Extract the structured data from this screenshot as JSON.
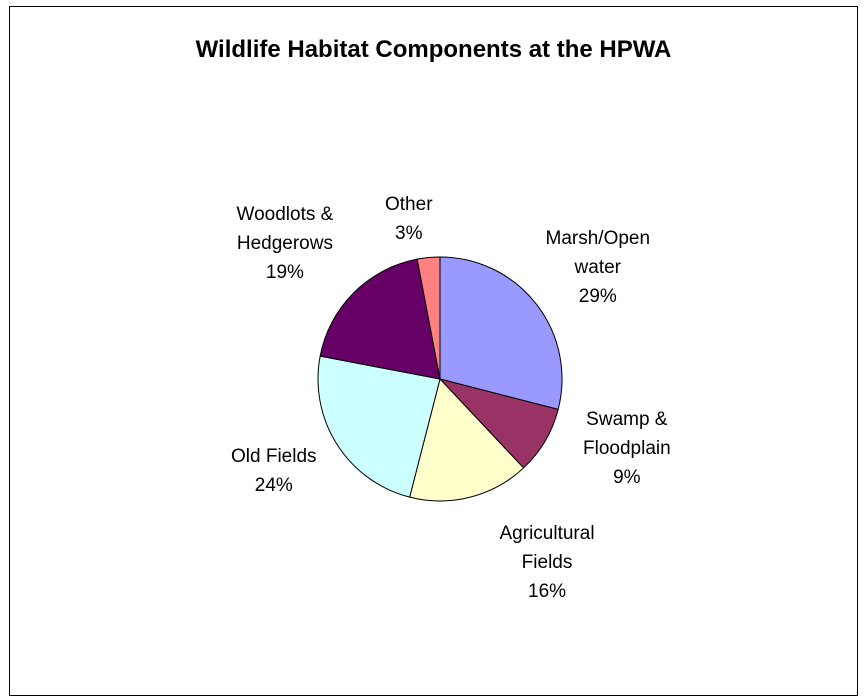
{
  "chart_data": {
    "type": "pie",
    "title": "Wildlife Habitat Components at the HPWA",
    "slices": [
      {
        "label_lines": [
          "Marsh/Open",
          "water"
        ],
        "percent_label": "29%",
        "value": 29,
        "color": "#9999FF"
      },
      {
        "label_lines": [
          "Swamp &",
          "Floodplain"
        ],
        "percent_label": "9%",
        "value": 9,
        "color": "#993366"
      },
      {
        "label_lines": [
          "Agricultural",
          "Fields"
        ],
        "percent_label": "16%",
        "value": 16,
        "color": "#FFFFCC"
      },
      {
        "label_lines": [
          "Old Fields"
        ],
        "percent_label": "24%",
        "value": 24,
        "color": "#CCFFFF"
      },
      {
        "label_lines": [
          "Woodlots &",
          "Hedgerows"
        ],
        "percent_label": "19%",
        "value": 19,
        "color": "#660066"
      },
      {
        "label_lines": [
          "Other"
        ],
        "percent_label": "3%",
        "value": 3,
        "color": "#FF8080"
      }
    ],
    "legend": "none"
  }
}
